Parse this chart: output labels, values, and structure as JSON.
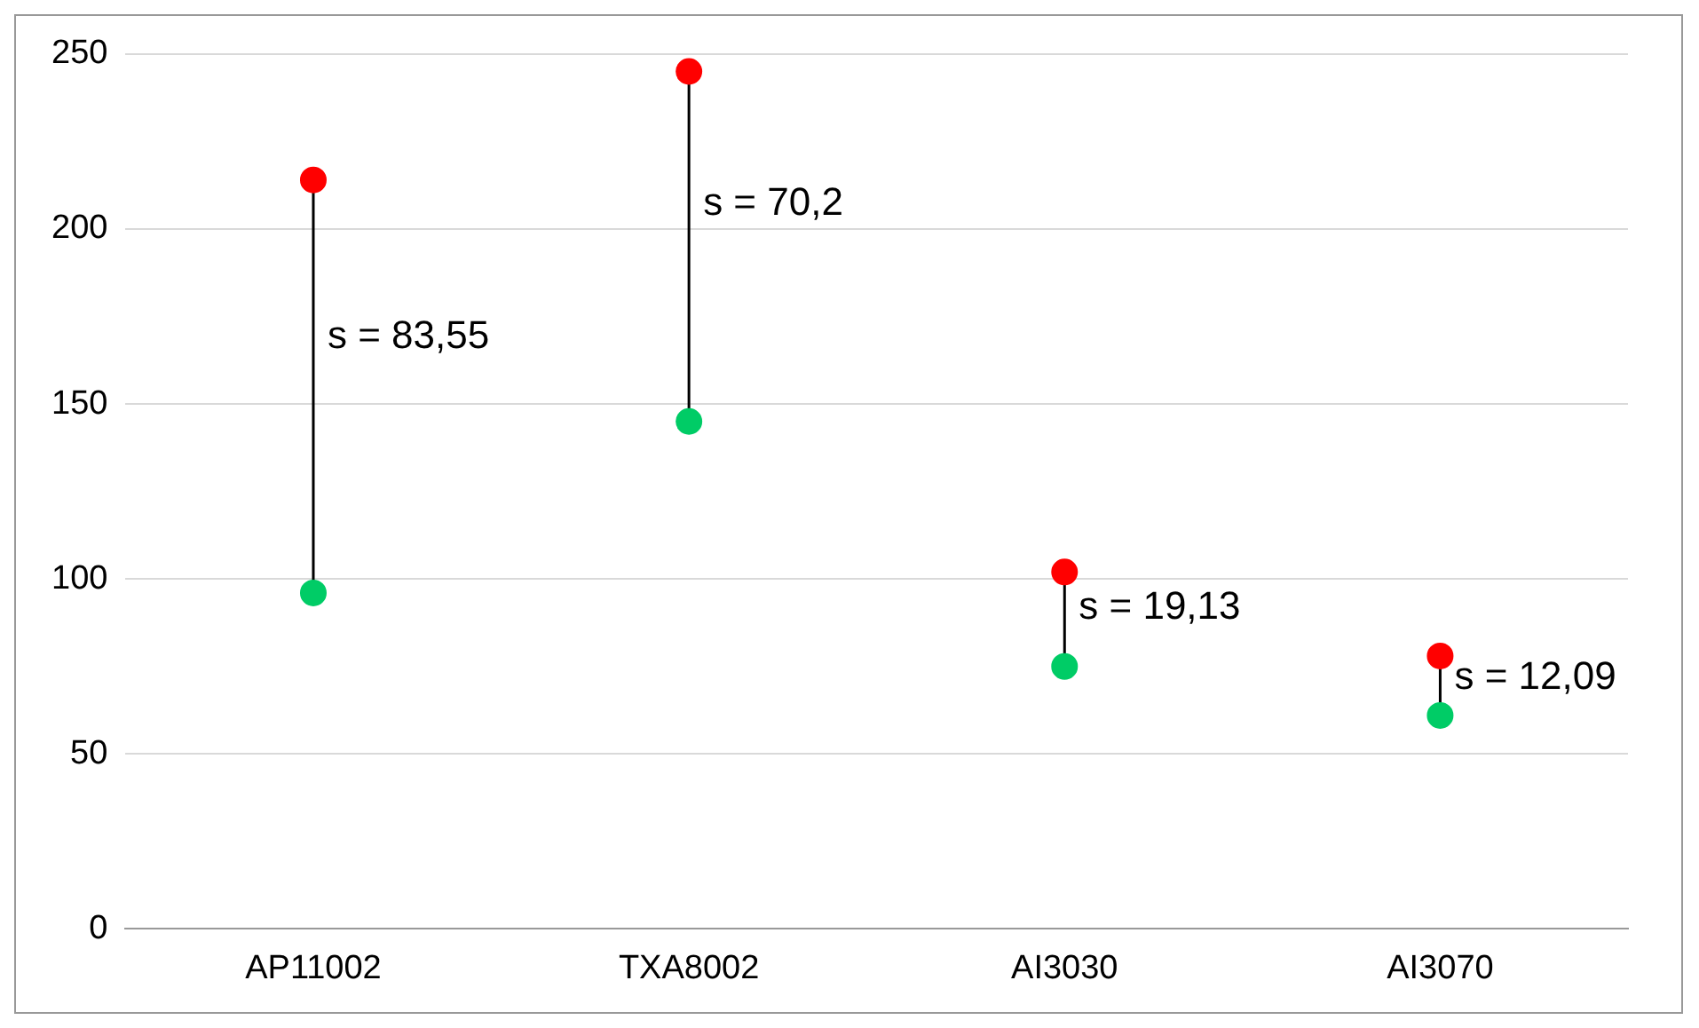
{
  "chart_data": {
    "type": "scatter",
    "categories": [
      "AP11002",
      "TXA8002",
      "AI3030",
      "AI3070"
    ],
    "series": [
      {
        "color": "#ff0000",
        "x": [
          "AP11002",
          "TXA8002",
          "AI3030",
          "AI3070"
        ],
        "values": [
          214,
          245,
          102,
          78
        ]
      },
      {
        "color": "#00cc66",
        "x": [
          "AP11002",
          "TXA8002",
          "AI3030",
          "AI3070"
        ],
        "values": [
          96,
          145,
          75,
          61
        ]
      }
    ],
    "ylim": [
      0,
      250
    ],
    "yticks": [
      0,
      50,
      100,
      150,
      200,
      250
    ],
    "grid": "y",
    "legend": false,
    "marker": "circle",
    "line_style": "solid",
    "annotations": [
      "s = 83,55",
      "s = 70,2",
      "s = 19,13",
      "s = 12,09"
    ]
  }
}
